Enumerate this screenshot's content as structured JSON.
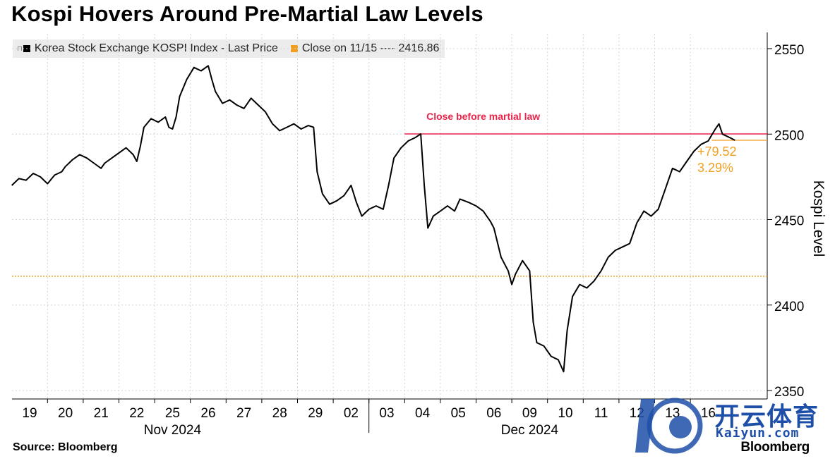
{
  "title": "Kospi Hovers Around Pre-Martial Law Levels",
  "legend": {
    "items": [
      {
        "label": "Korea Stock Exchange KOSPI Index - Last Price",
        "color": "#000000",
        "pin": "⊓"
      },
      {
        "label": "Close on 11/15 ---- 2416.86",
        "color": "#f0a01e"
      }
    ]
  },
  "annotations": {
    "martial_label": "Close before martial law",
    "change_points": "+79.52",
    "change_pct": "3.29%"
  },
  "source": "Source: Bloomberg",
  "brand": "Bloomberg",
  "watermark": {
    "text": "开云体育",
    "url": "Kaiyun.com"
  },
  "colors": {
    "line": "#000000",
    "martial": "#e8254a",
    "reference": "#f0a01e",
    "grid": "#d4d4d4"
  },
  "chart_data": {
    "type": "line",
    "title": "Kospi Hovers Around Pre-Martial Law Levels",
    "ylabel": "Kospi Level",
    "ylim": [
      2350,
      2550
    ],
    "yticks": [
      2350,
      2400,
      2450,
      2500,
      2550
    ],
    "xlabels": [
      "19",
      "20",
      "21",
      "22",
      "25",
      "26",
      "27",
      "28",
      "29",
      "02",
      "03",
      "04",
      "05",
      "06",
      "09",
      "10",
      "11",
      "12",
      "13",
      "16"
    ],
    "month_labels": [
      {
        "label": "Nov 2024",
        "center_day": 4
      },
      {
        "label": "Dec 2024",
        "center_day": 14
      }
    ],
    "grid": true,
    "legend_position": "top-left",
    "reference_lines": [
      {
        "name": "Close before martial law",
        "value": 2500.1,
        "from_day": 10.5,
        "color": "#e8254a"
      },
      {
        "name": "Close on 11/15",
        "value": 2416.86,
        "color": "#f0a01e",
        "style": "dotted"
      },
      {
        "name": "Last",
        "value": 2496.4,
        "from_day": 19.1,
        "color": "#f0a01e"
      }
    ],
    "series": [
      {
        "name": "Korea Stock Exchange KOSPI Index - Last Price",
        "color": "#000000",
        "points": [
          [
            -0.5,
            2470
          ],
          [
            -0.3,
            2474
          ],
          [
            -0.1,
            2473
          ],
          [
            0.1,
            2477
          ],
          [
            0.3,
            2475
          ],
          [
            0.5,
            2471
          ],
          [
            0.7,
            2476
          ],
          [
            0.9,
            2478
          ],
          [
            1.0,
            2481
          ],
          [
            1.2,
            2485
          ],
          [
            1.4,
            2488
          ],
          [
            1.6,
            2486
          ],
          [
            1.8,
            2483
          ],
          [
            2.0,
            2480
          ],
          [
            2.1,
            2483
          ],
          [
            2.3,
            2486
          ],
          [
            2.5,
            2489
          ],
          [
            2.7,
            2492
          ],
          [
            2.9,
            2488
          ],
          [
            3.0,
            2484
          ],
          [
            3.1,
            2493
          ],
          [
            3.2,
            2504
          ],
          [
            3.4,
            2509
          ],
          [
            3.6,
            2507
          ],
          [
            3.8,
            2510
          ],
          [
            3.9,
            2504
          ],
          [
            4.0,
            2503
          ],
          [
            4.1,
            2510
          ],
          [
            4.2,
            2522
          ],
          [
            4.4,
            2532
          ],
          [
            4.6,
            2539
          ],
          [
            4.8,
            2537
          ],
          [
            5.0,
            2540
          ],
          [
            5.1,
            2532
          ],
          [
            5.2,
            2525
          ],
          [
            5.4,
            2518
          ],
          [
            5.6,
            2520
          ],
          [
            5.8,
            2517
          ],
          [
            6.0,
            2515
          ],
          [
            6.2,
            2521
          ],
          [
            6.4,
            2517
          ],
          [
            6.6,
            2513
          ],
          [
            6.8,
            2506
          ],
          [
            7.0,
            2502
          ],
          [
            7.2,
            2504
          ],
          [
            7.4,
            2506
          ],
          [
            7.6,
            2503
          ],
          [
            7.8,
            2505
          ],
          [
            7.95,
            2504
          ],
          [
            8.05,
            2478
          ],
          [
            8.2,
            2465
          ],
          [
            8.4,
            2459
          ],
          [
            8.6,
            2461
          ],
          [
            8.8,
            2464
          ],
          [
            9.0,
            2470
          ],
          [
            9.15,
            2460
          ],
          [
            9.3,
            2452
          ],
          [
            9.5,
            2456
          ],
          [
            9.7,
            2458
          ],
          [
            9.9,
            2456
          ],
          [
            10.05,
            2470
          ],
          [
            10.2,
            2486
          ],
          [
            10.4,
            2492
          ],
          [
            10.6,
            2496
          ],
          [
            10.8,
            2498
          ],
          [
            10.95,
            2500.1
          ],
          [
            11.05,
            2470
          ],
          [
            11.15,
            2445
          ],
          [
            11.3,
            2452
          ],
          [
            11.5,
            2455
          ],
          [
            11.7,
            2458
          ],
          [
            11.9,
            2455
          ],
          [
            12.05,
            2462
          ],
          [
            12.3,
            2460
          ],
          [
            12.5,
            2458
          ],
          [
            12.7,
            2455
          ],
          [
            12.9,
            2449
          ],
          [
            13.0,
            2445
          ],
          [
            13.2,
            2428
          ],
          [
            13.4,
            2420
          ],
          [
            13.5,
            2412
          ],
          [
            13.6,
            2418
          ],
          [
            13.8,
            2426
          ],
          [
            14.0,
            2420
          ],
          [
            14.1,
            2390
          ],
          [
            14.2,
            2378
          ],
          [
            14.4,
            2376
          ],
          [
            14.6,
            2370
          ],
          [
            14.8,
            2368
          ],
          [
            14.95,
            2361
          ],
          [
            15.05,
            2385
          ],
          [
            15.2,
            2405
          ],
          [
            15.4,
            2412
          ],
          [
            15.6,
            2410
          ],
          [
            15.8,
            2414
          ],
          [
            16.0,
            2420
          ],
          [
            16.2,
            2428
          ],
          [
            16.4,
            2432
          ],
          [
            16.6,
            2434
          ],
          [
            16.8,
            2436
          ],
          [
            17.0,
            2448
          ],
          [
            17.2,
            2455
          ],
          [
            17.4,
            2452
          ],
          [
            17.6,
            2456
          ],
          [
            17.8,
            2468
          ],
          [
            18.0,
            2480
          ],
          [
            18.2,
            2478
          ],
          [
            18.4,
            2484
          ],
          [
            18.6,
            2490
          ],
          [
            18.8,
            2494
          ],
          [
            19.0,
            2496
          ],
          [
            19.2,
            2503
          ],
          [
            19.3,
            2506
          ],
          [
            19.4,
            2500
          ],
          [
            19.6,
            2498
          ],
          [
            19.75,
            2496.4
          ]
        ]
      }
    ]
  }
}
